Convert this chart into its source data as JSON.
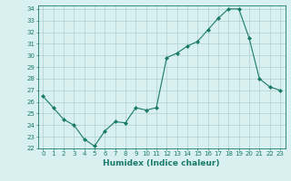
{
  "x": [
    0,
    1,
    2,
    3,
    4,
    5,
    6,
    7,
    8,
    9,
    10,
    11,
    12,
    13,
    14,
    15,
    16,
    17,
    18,
    19,
    20,
    21,
    22,
    23
  ],
  "y": [
    26.5,
    25.5,
    24.5,
    24.0,
    22.8,
    22.2,
    23.5,
    24.3,
    24.2,
    25.5,
    25.3,
    25.5,
    29.8,
    30.2,
    30.8,
    31.2,
    32.2,
    33.2,
    34.0,
    34.0,
    31.5,
    28.0,
    27.3,
    27.0
  ],
  "ylim": [
    22,
    34
  ],
  "xlim": [
    -0.5,
    23.5
  ],
  "yticks": [
    22,
    23,
    24,
    25,
    26,
    27,
    28,
    29,
    30,
    31,
    32,
    33,
    34
  ],
  "xticks": [
    0,
    1,
    2,
    3,
    4,
    5,
    6,
    7,
    8,
    9,
    10,
    11,
    12,
    13,
    14,
    15,
    16,
    17,
    18,
    19,
    20,
    21,
    22,
    23
  ],
  "xlabel": "Humidex (Indice chaleur)",
  "line_color": "#1a7a6a",
  "marker": "D",
  "marker_size": 2.0,
  "bg_color": "#d8f0f0",
  "grid_color": "#b0d0d0",
  "tick_fontsize": 5.0,
  "xlabel_fontsize": 6.5
}
